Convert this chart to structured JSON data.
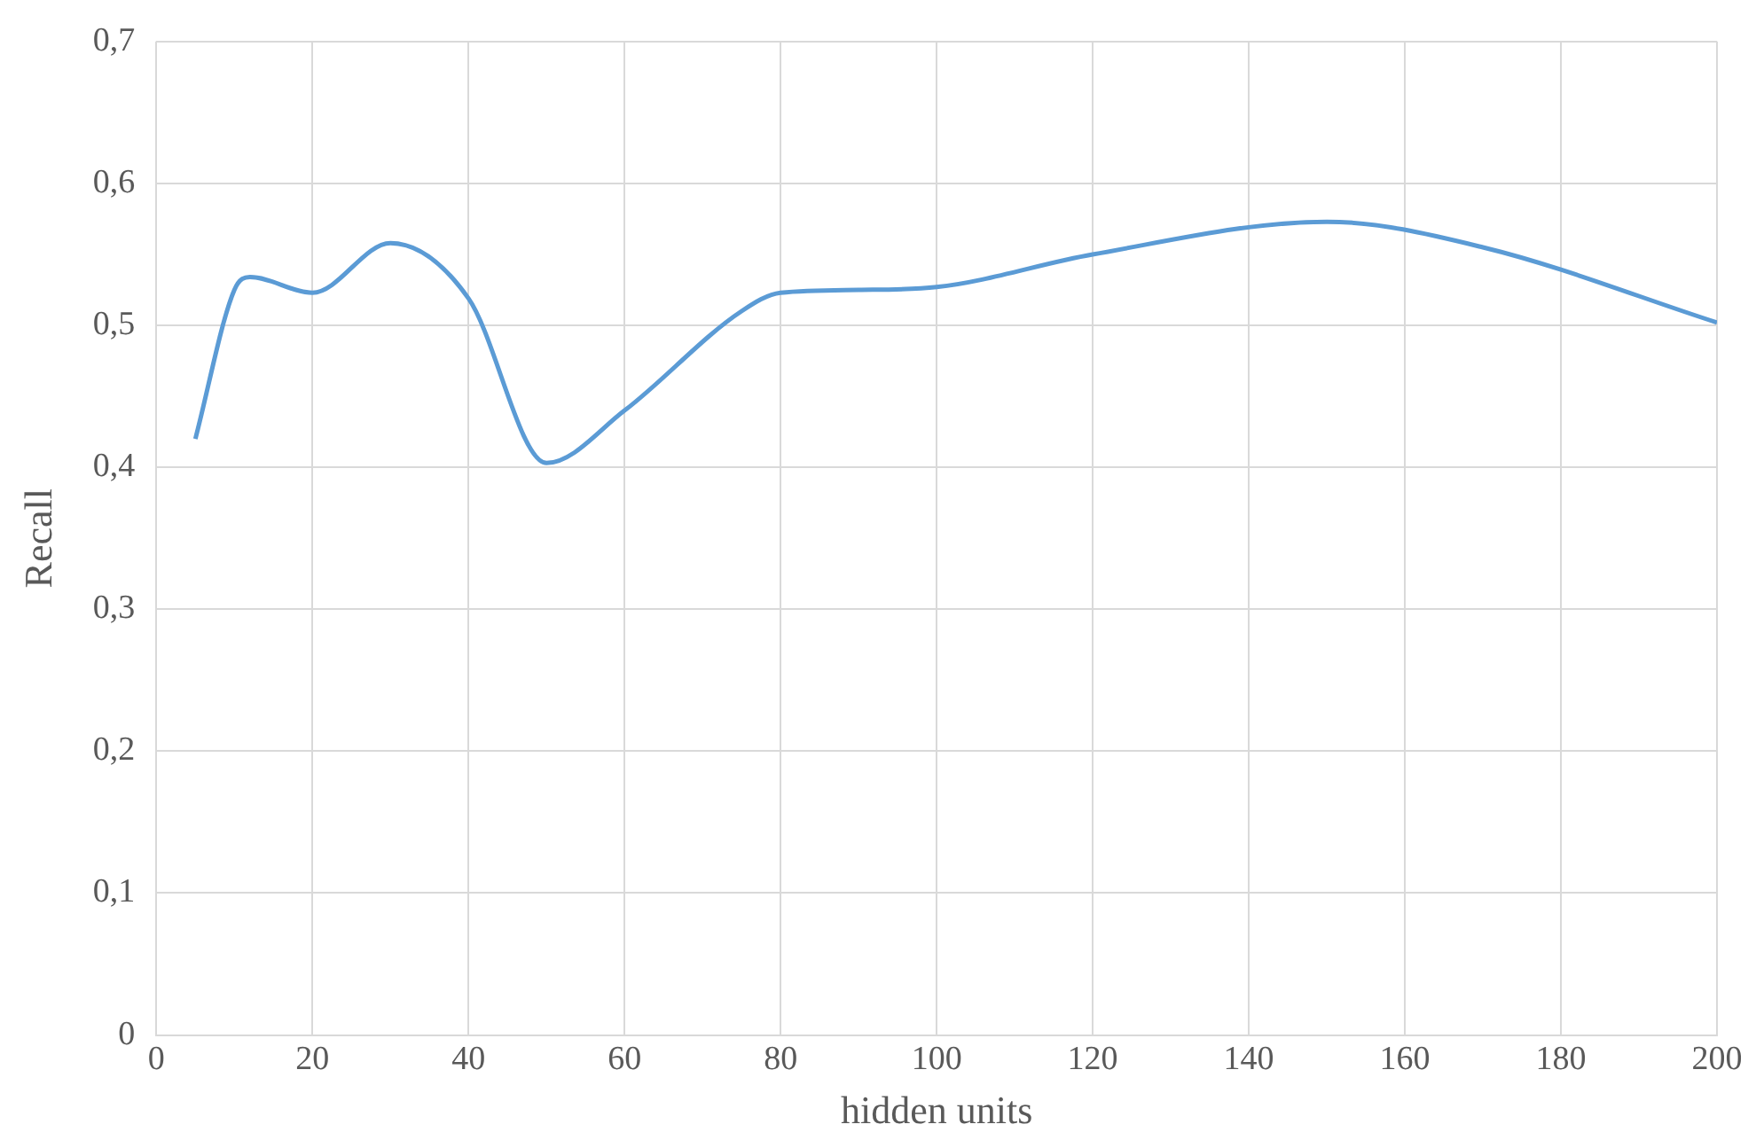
{
  "chart_data": {
    "type": "line",
    "xlabel": "hidden units",
    "ylabel": "Recall",
    "x": [
      5,
      10,
      12,
      20,
      30,
      40,
      50,
      60,
      75,
      80,
      90,
      100,
      120,
      150,
      170,
      200
    ],
    "series": [
      {
        "color": "#5b9bd5",
        "values": [
          0.42,
          0.525,
          0.534,
          0.523,
          0.558,
          0.519,
          0.403,
          0.44,
          0.51,
          0.523,
          0.525,
          0.527,
          0.55,
          0.573,
          0.555,
          0.502
        ]
      }
    ],
    "xlim": [
      0,
      200
    ],
    "xticks": [
      0,
      20,
      40,
      60,
      80,
      100,
      120,
      140,
      160,
      180,
      200
    ],
    "ylim": [
      0,
      0.7
    ],
    "yticks": [
      {
        "value": 0,
        "label": "0"
      },
      {
        "value": 0.1,
        "label": "0,1"
      },
      {
        "value": 0.2,
        "label": "0,2"
      },
      {
        "value": 0.3,
        "label": "0,3"
      },
      {
        "value": 0.4,
        "label": "0,4"
      },
      {
        "value": 0.5,
        "label": "0,5"
      },
      {
        "value": 0.6,
        "label": "0,6"
      },
      {
        "value": 0.7,
        "label": "0,7"
      }
    ],
    "grid": true,
    "marker": "none",
    "line_style": "solid"
  }
}
